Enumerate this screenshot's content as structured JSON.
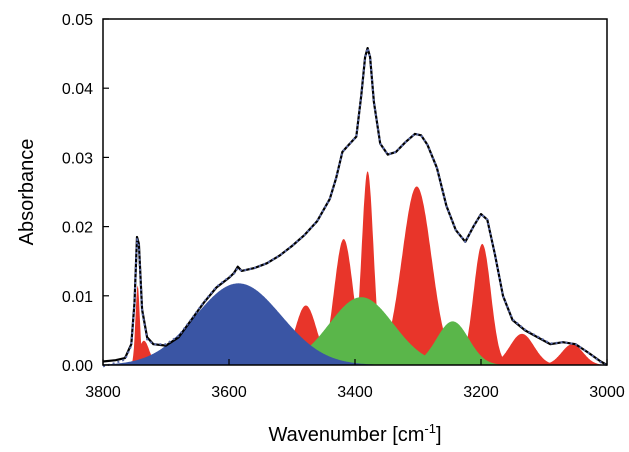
{
  "chart_data": {
    "type": "area",
    "xlabel": "Wavenumber [cm",
    "xlabel_superscript": "-1",
    "xlabel_suffix": "]",
    "ylabel": "Absorbance",
    "xlim": [
      3800,
      3000
    ],
    "ylim": [
      0,
      0.05
    ],
    "x_reversed": true,
    "x_ticks": [
      "3800",
      "3600",
      "3400",
      "3200",
      "3000"
    ],
    "y_ticks": [
      "0.00",
      "0.01",
      "0.02",
      "0.03",
      "0.04",
      "0.05"
    ],
    "grid": false,
    "legend": "none",
    "series": [
      {
        "kind": "gaussian-fill",
        "color": "#e8352a",
        "components": [
          {
            "center": 3745,
            "height": 0.0115,
            "fwhm": 8
          },
          {
            "center": 3735,
            "height": 0.0035,
            "fwhm": 20
          },
          {
            "center": 3478,
            "height": 0.0086,
            "fwhm": 40
          },
          {
            "center": 3418,
            "height": 0.0182,
            "fwhm": 35
          },
          {
            "center": 3380,
            "height": 0.028,
            "fwhm": 22
          },
          {
            "center": 3302,
            "height": 0.0258,
            "fwhm": 55
          },
          {
            "center": 3198,
            "height": 0.0175,
            "fwhm": 32
          },
          {
            "center": 3135,
            "height": 0.0045,
            "fwhm": 45
          },
          {
            "center": 3055,
            "height": 0.003,
            "fwhm": 40
          }
        ]
      },
      {
        "kind": "gaussian-fill",
        "color": "#5ab64a",
        "components": [
          {
            "center": 3390,
            "height": 0.0098,
            "fwhm": 120
          },
          {
            "center": 3245,
            "height": 0.0063,
            "fwhm": 60
          }
        ]
      },
      {
        "kind": "gaussian-fill",
        "color": "#3a55a4",
        "components": [
          {
            "center": 3585,
            "height": 0.0118,
            "fwhm": 160
          }
        ]
      }
    ],
    "lines": [
      {
        "name_hidden": "measured",
        "color": "#000000",
        "style": "solid",
        "points": [
          [
            3800,
            0.0005
          ],
          [
            3780,
            0.0007
          ],
          [
            3765,
            0.001
          ],
          [
            3755,
            0.003
          ],
          [
            3750,
            0.009
          ],
          [
            3746,
            0.0185
          ],
          [
            3743,
            0.0175
          ],
          [
            3738,
            0.008
          ],
          [
            3730,
            0.004
          ],
          [
            3720,
            0.003
          ],
          [
            3700,
            0.0028
          ],
          [
            3680,
            0.004
          ],
          [
            3660,
            0.0065
          ],
          [
            3640,
            0.009
          ],
          [
            3620,
            0.0112
          ],
          [
            3600,
            0.0126
          ],
          [
            3592,
            0.0133
          ],
          [
            3586,
            0.0142
          ],
          [
            3580,
            0.0136
          ],
          [
            3560,
            0.014
          ],
          [
            3540,
            0.0147
          ],
          [
            3520,
            0.0158
          ],
          [
            3500,
            0.0172
          ],
          [
            3480,
            0.0188
          ],
          [
            3460,
            0.0208
          ],
          [
            3440,
            0.024
          ],
          [
            3430,
            0.027
          ],
          [
            3420,
            0.0308
          ],
          [
            3410,
            0.0318
          ],
          [
            3398,
            0.033
          ],
          [
            3390,
            0.039
          ],
          [
            3384,
            0.0445
          ],
          [
            3380,
            0.0458
          ],
          [
            3376,
            0.0445
          ],
          [
            3370,
            0.038
          ],
          [
            3360,
            0.032
          ],
          [
            3348,
            0.0304
          ],
          [
            3335,
            0.0308
          ],
          [
            3320,
            0.0322
          ],
          [
            3305,
            0.0334
          ],
          [
            3295,
            0.0332
          ],
          [
            3285,
            0.0318
          ],
          [
            3270,
            0.0285
          ],
          [
            3255,
            0.023
          ],
          [
            3240,
            0.0195
          ],
          [
            3225,
            0.0178
          ],
          [
            3212,
            0.02
          ],
          [
            3200,
            0.0218
          ],
          [
            3190,
            0.021
          ],
          [
            3178,
            0.016
          ],
          [
            3165,
            0.01
          ],
          [
            3150,
            0.0065
          ],
          [
            3130,
            0.005
          ],
          [
            3110,
            0.004
          ],
          [
            3090,
            0.003
          ],
          [
            3070,
            0.0033
          ],
          [
            3050,
            0.003
          ],
          [
            3030,
            0.0018
          ],
          [
            3010,
            0.0005
          ],
          [
            3000,
            0.0
          ]
        ]
      },
      {
        "name_hidden": "fit",
        "color": "#5b6aa8",
        "style": "dotted",
        "points": [
          [
            3800,
            -0.0002
          ],
          [
            3780,
            0.0003
          ],
          [
            3765,
            0.0008
          ],
          [
            3755,
            0.0028
          ],
          [
            3750,
            0.0088
          ],
          [
            3746,
            0.0182
          ],
          [
            3743,
            0.0172
          ],
          [
            3738,
            0.0078
          ],
          [
            3730,
            0.0037
          ],
          [
            3720,
            0.003
          ],
          [
            3700,
            0.003
          ],
          [
            3680,
            0.0042
          ],
          [
            3660,
            0.0066
          ],
          [
            3640,
            0.0091
          ],
          [
            3620,
            0.0113
          ],
          [
            3600,
            0.0127
          ],
          [
            3592,
            0.0132
          ],
          [
            3586,
            0.014
          ],
          [
            3580,
            0.0136
          ],
          [
            3560,
            0.014
          ],
          [
            3540,
            0.0147
          ],
          [
            3520,
            0.0158
          ],
          [
            3500,
            0.0172
          ],
          [
            3480,
            0.0188
          ],
          [
            3460,
            0.0208
          ],
          [
            3440,
            0.024
          ],
          [
            3430,
            0.027
          ],
          [
            3420,
            0.0308
          ],
          [
            3410,
            0.0318
          ],
          [
            3398,
            0.033
          ],
          [
            3390,
            0.039
          ],
          [
            3384,
            0.0445
          ],
          [
            3380,
            0.0458
          ],
          [
            3376,
            0.0445
          ],
          [
            3370,
            0.038
          ],
          [
            3360,
            0.032
          ],
          [
            3348,
            0.0304
          ],
          [
            3335,
            0.0308
          ],
          [
            3320,
            0.0322
          ],
          [
            3305,
            0.0334
          ],
          [
            3295,
            0.0332
          ],
          [
            3285,
            0.0318
          ],
          [
            3270,
            0.0285
          ],
          [
            3255,
            0.023
          ],
          [
            3240,
            0.0195
          ],
          [
            3225,
            0.0178
          ],
          [
            3212,
            0.02
          ],
          [
            3200,
            0.0218
          ],
          [
            3190,
            0.021
          ],
          [
            3178,
            0.016
          ],
          [
            3165,
            0.01
          ],
          [
            3150,
            0.0066
          ],
          [
            3130,
            0.0051
          ],
          [
            3110,
            0.0041
          ],
          [
            3090,
            0.0031
          ],
          [
            3070,
            0.0033
          ],
          [
            3050,
            0.003
          ],
          [
            3030,
            0.0018
          ],
          [
            3010,
            0.0004
          ],
          [
            3000,
            -0.0001
          ]
        ]
      }
    ]
  }
}
